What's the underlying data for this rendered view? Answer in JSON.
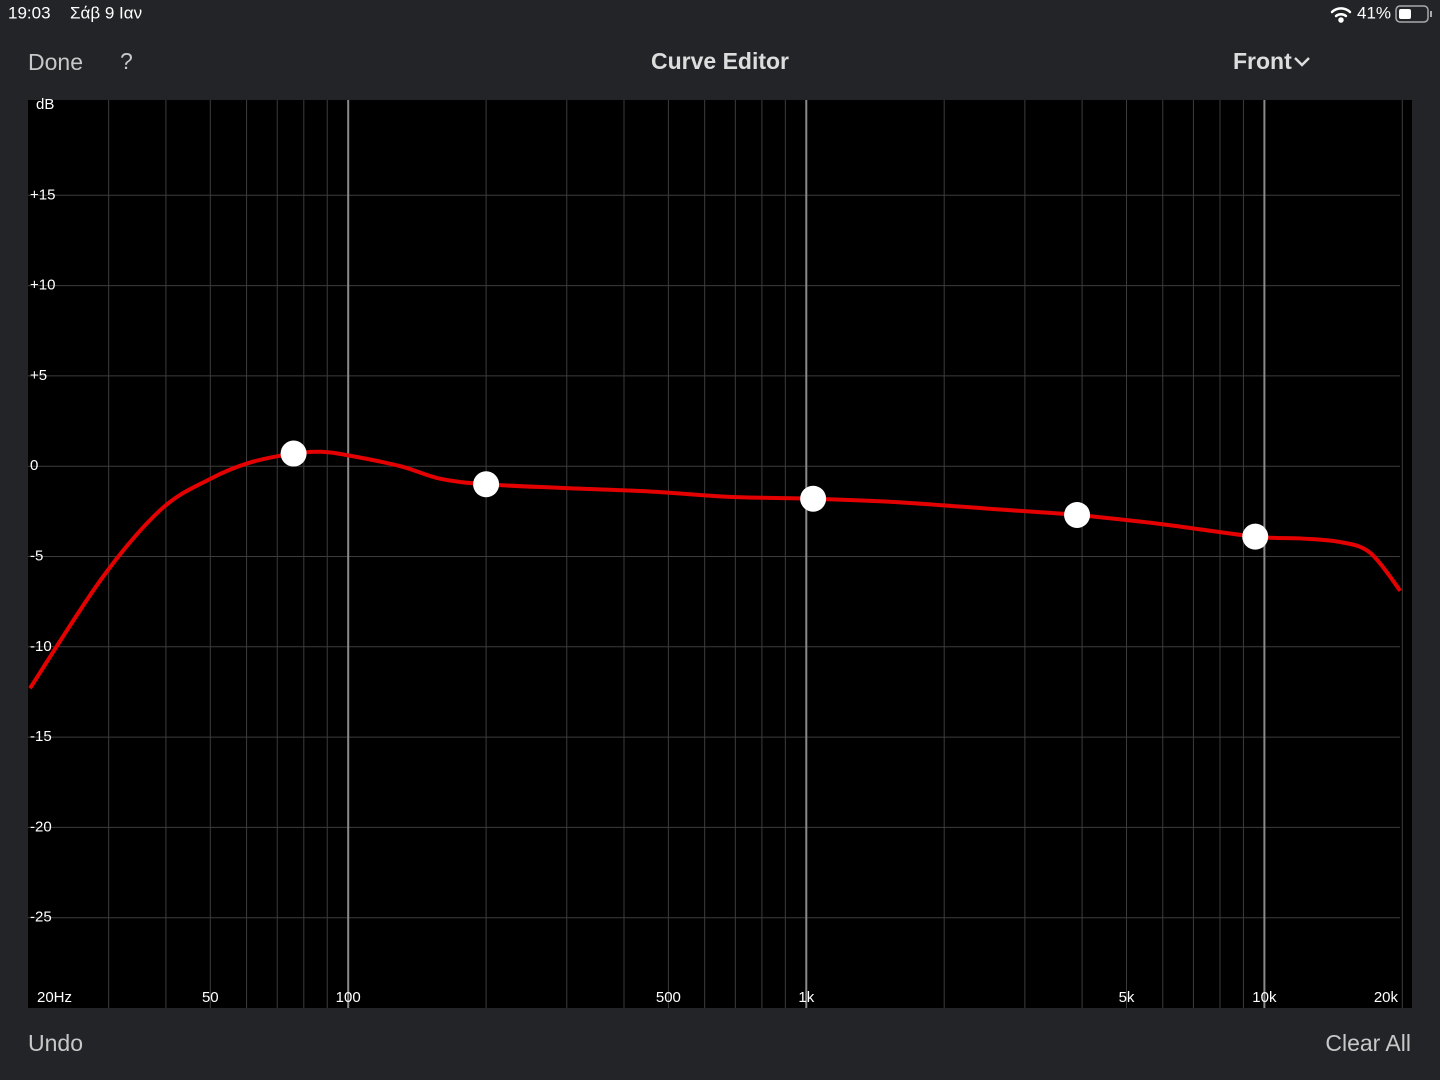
{
  "status_bar": {
    "time": "19:03",
    "date": "Σάβ 9 Ιαν",
    "battery": "41%"
  },
  "nav_bar": {
    "left_button": "Done",
    "help_button": "?",
    "title": "Curve Editor",
    "right_menu": "Front"
  },
  "toolbar": {
    "left_button": "Undo",
    "right_button": "Clear All"
  },
  "chart_data": {
    "type": "line",
    "y_label": "dB",
    "x_scale": "log",
    "grid": true,
    "xlim": [
      20,
      21000
    ],
    "ylim": [
      -30,
      20
    ],
    "xticks": [
      {
        "value": 20,
        "label": "20Hz"
      },
      50,
      100,
      500,
      {
        "value": 1000,
        "label": "1k"
      },
      {
        "value": 5000,
        "label": "5k"
      },
      {
        "value": 10000,
        "label": "10k"
      },
      {
        "value": 20000,
        "label": "20k"
      }
    ],
    "xminor": [
      30,
      40,
      60,
      70,
      80,
      90,
      200,
      300,
      400,
      600,
      700,
      800,
      900,
      2000,
      3000,
      4000,
      6000,
      7000,
      8000,
      9000
    ],
    "yticks": [
      {
        "value": 15,
        "label": "+15"
      },
      {
        "value": 10,
        "label": "+10"
      },
      {
        "value": 5,
        "label": "+5"
      },
      0,
      -5,
      -10,
      -15,
      -20,
      -25
    ],
    "series": [
      {
        "type": "line",
        "color": "#e40000",
        "x": [
          20.2,
          29,
          39,
          50,
          61,
          76,
          87,
          100,
          130,
          159,
          200,
          290,
          456,
          682,
          1035,
          1600,
          2650,
          3900,
          5930,
          9550,
          12000,
          14650,
          17030,
          19800
        ],
        "values": [
          -12.3,
          -6.2,
          -2.4,
          -0.7,
          0.2,
          0.7,
          0.8,
          0.6,
          0.0,
          -0.7,
          -1.0,
          -1.2,
          -1.4,
          -1.7,
          -1.8,
          -2.0,
          -2.4,
          -2.7,
          -3.2,
          -3.9,
          -4.0,
          -4.2,
          -4.8,
          -6.9
        ]
      },
      {
        "type": "scatter",
        "color": "#ffffff",
        "x": [
          76,
          200,
          1035,
          3900,
          9550
        ],
        "values": [
          0.7,
          -1.0,
          -1.8,
          -2.7,
          -3.9
        ]
      }
    ]
  }
}
